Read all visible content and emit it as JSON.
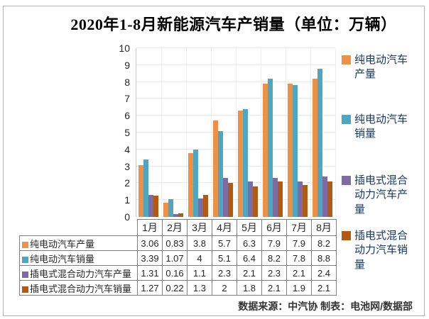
{
  "title": "2020年1-8月新能源汽车产销量（单位：万辆）",
  "footer": {
    "text": "数据来源：中汽协  制表：电池网/数据部"
  },
  "colors": {
    "bev_production": "#ED9146",
    "bev_sales": "#4EA6C0",
    "phev_production": "#7D6BA4",
    "phev_sales": "#B35A12",
    "legend_text": "#17375e"
  },
  "chart_data": {
    "type": "bar",
    "title": "2020年1-8月新能源汽车产销量（单位：万辆）",
    "categories": [
      "1月",
      "2月",
      "3月",
      "4月",
      "5月",
      "6月",
      "7月",
      "8月"
    ],
    "series": [
      {
        "name": "纯电动汽车产量",
        "color": "#ED9146",
        "values": [
          3.06,
          0.83,
          3.8,
          5.7,
          6.3,
          7.9,
          7.9,
          8.2
        ]
      },
      {
        "name": "纯电动汽车销量",
        "color": "#4EA6C0",
        "values": [
          3.39,
          1.07,
          4,
          5.1,
          6.4,
          8.2,
          7.8,
          8.8
        ]
      },
      {
        "name": "插电式混合动力汽车产量",
        "color": "#7D6BA4",
        "values": [
          1.31,
          0.16,
          1.1,
          2.3,
          2.1,
          2.3,
          2.1,
          2.4
        ]
      },
      {
        "name": "插电式混合动力汽车销量",
        "color": "#B35A12",
        "values": [
          1.27,
          0.22,
          1.3,
          2,
          1.8,
          2.1,
          1.9,
          2.1
        ]
      }
    ],
    "xlabel": "",
    "ylabel": "",
    "ylim": [
      0,
      10
    ],
    "ytick_step": 1,
    "grid": true,
    "legend_position": "right",
    "data_table_shown": true
  }
}
